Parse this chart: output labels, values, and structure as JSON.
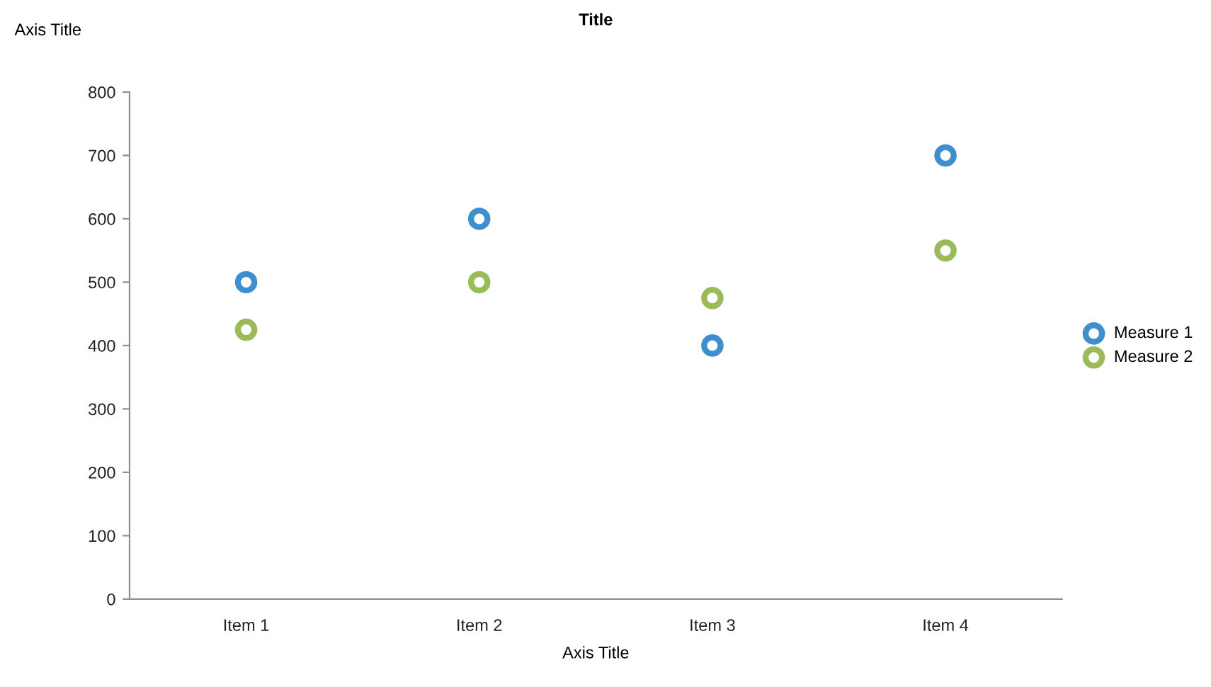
{
  "chart_data": {
    "type": "scatter",
    "title": "Title",
    "xlabel": "Axis Title",
    "ylabel": "Axis Title",
    "categories": [
      "Item 1",
      "Item 2",
      "Item 3",
      "Item 4"
    ],
    "series": [
      {
        "name": "Measure 1",
        "color": "#3f8fcc",
        "values": [
          500,
          600,
          400,
          700
        ]
      },
      {
        "name": "Measure 2",
        "color": "#9bbb59",
        "values": [
          425,
          500,
          475,
          550
        ]
      }
    ],
    "ylim": [
      0,
      800
    ],
    "yticks": [
      0,
      100,
      200,
      300,
      400,
      500,
      600,
      700,
      800
    ],
    "grid": false,
    "legend": "right",
    "marker": "circle"
  }
}
